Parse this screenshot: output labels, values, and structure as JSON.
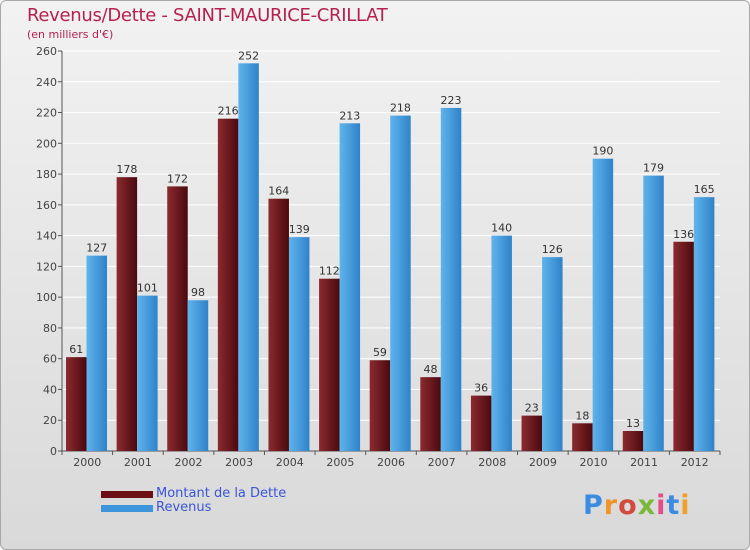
{
  "header": {
    "title": "Revenus/Dette - SAINT-MAURICE-CRILLAT",
    "subtitle": "(en milliers d'€)"
  },
  "chart_data": {
    "type": "bar",
    "title": "Revenus/Dette - SAINT-MAURICE-CRILLAT",
    "ylabel": "(en milliers d'€)",
    "xlabel": "",
    "categories": [
      "2000",
      "2001",
      "2002",
      "2003",
      "2004",
      "2005",
      "2006",
      "2007",
      "2008",
      "2009",
      "2010",
      "2011",
      "2012"
    ],
    "series": [
      {
        "name": "Montant de la Dette",
        "color": "#7a1a1f",
        "values": [
          61,
          178,
          172,
          216,
          164,
          112,
          59,
          48,
          36,
          23,
          18,
          13,
          136
        ]
      },
      {
        "name": "Revenus",
        "color": "#4aa3e3",
        "values": [
          127,
          101,
          98,
          252,
          139,
          213,
          218,
          223,
          140,
          126,
          190,
          179,
          165
        ]
      }
    ],
    "ylim": [
      0,
      260
    ],
    "yticks": [
      0,
      20,
      40,
      60,
      80,
      100,
      120,
      140,
      160,
      180,
      200,
      220,
      240,
      260
    ],
    "grid": true,
    "legend_position": "bottom-left"
  },
  "legend": {
    "items": [
      {
        "label": "Montant de la Dette",
        "color": "#6b0f14"
      },
      {
        "label": "Revenus",
        "color": "#3d96dc"
      }
    ]
  },
  "brand": {
    "letters": [
      "P",
      "r",
      "o",
      "x",
      "i",
      "t",
      "i"
    ],
    "colors": [
      "#3b8be0",
      "#f0932a",
      "#d14a3a",
      "#7ab83a",
      "#e44c8c",
      "#3b8be0",
      "#f0a02a"
    ]
  }
}
